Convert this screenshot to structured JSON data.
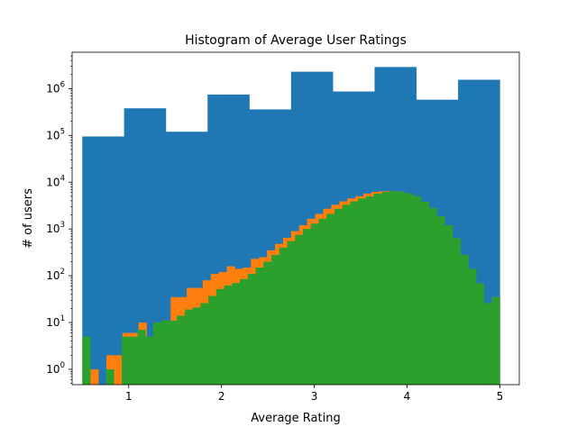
{
  "chart_data": {
    "type": "bar",
    "title": "Histogram of Average User Ratings",
    "xlabel": "Average Rating",
    "ylabel": "# of users",
    "xlim": [
      0.39,
      5.21
    ],
    "ylim": [
      0.47,
      6000000
    ],
    "yscale": "log",
    "grid": false,
    "x_ticks": [
      {
        "value": 1,
        "label": "1"
      },
      {
        "value": 2,
        "label": "2"
      },
      {
        "value": 3,
        "label": "3"
      },
      {
        "value": 4,
        "label": "4"
      },
      {
        "value": 5,
        "label": "5"
      }
    ],
    "y_ticks": [
      {
        "value": 1,
        "base": "10",
        "exp": "0"
      },
      {
        "value": 10,
        "base": "10",
        "exp": "1"
      },
      {
        "value": 100,
        "base": "10",
        "exp": "2"
      },
      {
        "value": 1000,
        "base": "10",
        "exp": "3"
      },
      {
        "value": 10000,
        "base": "10",
        "exp": "4"
      },
      {
        "value": 100000,
        "base": "10",
        "exp": "5"
      },
      {
        "value": 1000000,
        "base": "10",
        "exp": "6"
      }
    ],
    "series": [
      {
        "color": "#1f77b4",
        "bin_start": 0.5,
        "bin_end": 5.0,
        "values": [
          95000,
          380000,
          120000,
          750000,
          360000,
          2300000,
          870000,
          2900000,
          580000,
          1550000
        ]
      },
      {
        "color": "#ff7f0e",
        "bin_start": 0.5,
        "bin_end": 5.0,
        "values": [
          0,
          1,
          0,
          2,
          2,
          6,
          6,
          10,
          4,
          10,
          11,
          35,
          35,
          55,
          55,
          80,
          110,
          120,
          160,
          140,
          150,
          230,
          250,
          350,
          480,
          650,
          900,
          1200,
          1650,
          2100,
          2700,
          3300,
          3900,
          4500,
          5000,
          5700,
          6200,
          6400,
          6400,
          6300,
          5700,
          5000,
          3800,
          2800,
          1850,
          1200,
          630,
          280,
          140,
          68,
          26,
          35
        ]
      },
      {
        "color": "#2ca02c",
        "bin_start": 0.5,
        "bin_end": 5.0,
        "values": [
          5,
          0,
          0,
          1,
          0,
          5,
          5,
          7,
          5,
          10,
          11,
          11,
          14,
          19,
          21,
          26,
          37,
          52,
          62,
          70,
          85,
          110,
          150,
          200,
          280,
          400,
          550,
          750,
          1000,
          1300,
          1650,
          2100,
          2700,
          3300,
          3900,
          4500,
          5000,
          5700,
          6200,
          6400,
          6300,
          5700,
          5000,
          3800,
          2800,
          1850,
          1200,
          630,
          280,
          140,
          68,
          26,
          35
        ]
      }
    ]
  }
}
